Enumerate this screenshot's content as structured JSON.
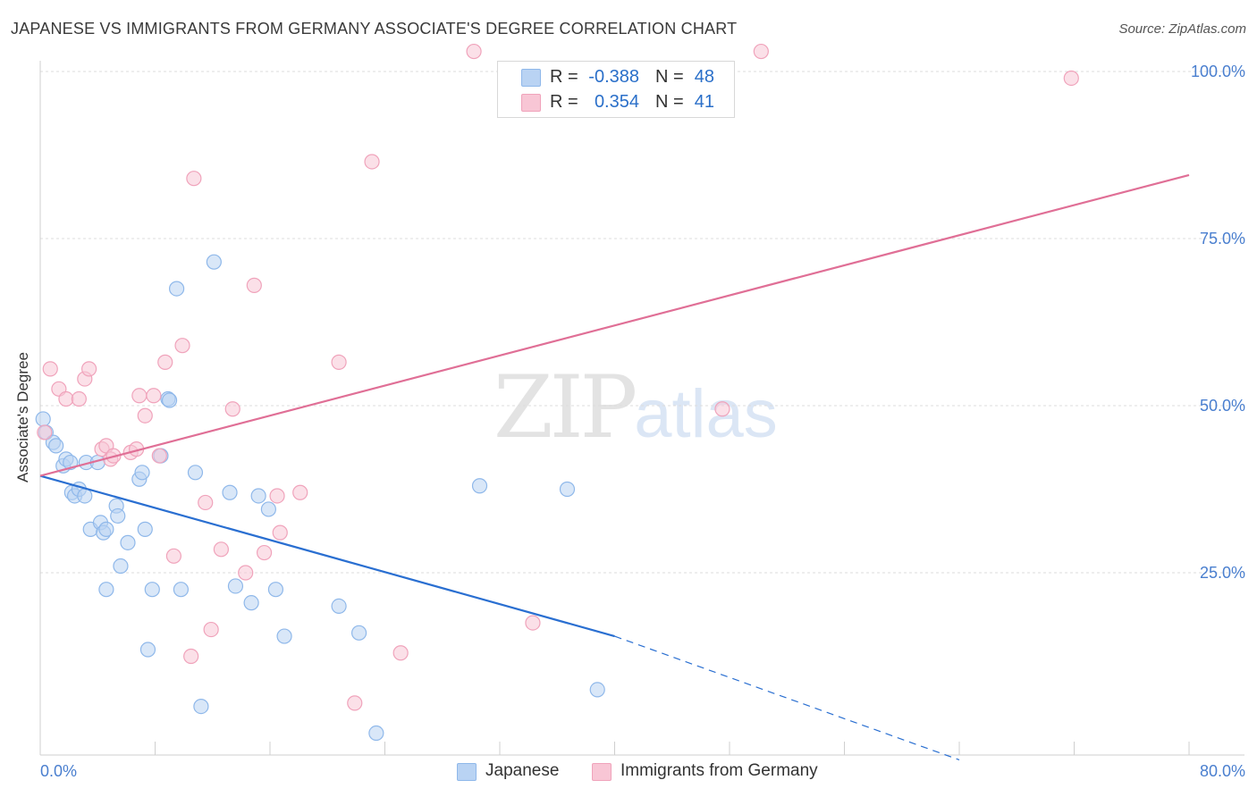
{
  "chart_data": {
    "type": "scatter",
    "title": "JAPANESE VS IMMIGRANTS FROM GERMANY ASSOCIATE'S DEGREE CORRELATION CHART",
    "source": "Source: ZipAtlas.com",
    "ylabel": "Associate's Degree",
    "xlabel": "",
    "xlim": [
      0,
      80
    ],
    "ylim": [
      0,
      100
    ],
    "x_tick_labels": {
      "left": "0.0%",
      "right": "80.0%"
    },
    "y_tick_labels": [
      "100.0%",
      "75.0%",
      "50.0%",
      "25.0%"
    ],
    "y_tick_values": [
      100,
      75,
      50,
      25
    ],
    "grid": true,
    "legend_stats": [
      {
        "r_label": "R =",
        "r_value": "-0.388",
        "n_label": "N =",
        "n_value": "48"
      },
      {
        "r_label": "R =",
        "r_value": "0.354",
        "n_label": "N =",
        "n_value": "41"
      }
    ],
    "series": [
      {
        "name": "Japanese",
        "color": "#8fb8ea",
        "fill": "#b9d3f3",
        "line_color": "#2a6fd1",
        "trend": {
          "x0": 0,
          "y0": 39.5,
          "x1": 40,
          "y1": 15.5,
          "dash_to_x": 80,
          "dash_to_y": -8.5
        },
        "points": [
          [
            0.2,
            48
          ],
          [
            0.4,
            46
          ],
          [
            0.9,
            44.5
          ],
          [
            1.1,
            44
          ],
          [
            1.6,
            41
          ],
          [
            1.8,
            42
          ],
          [
            2.1,
            41.5
          ],
          [
            2.2,
            37
          ],
          [
            2.4,
            36.5
          ],
          [
            2.7,
            37.5
          ],
          [
            3.1,
            36.5
          ],
          [
            3.2,
            41.5
          ],
          [
            4,
            41.5
          ],
          [
            3.5,
            31.5
          ],
          [
            4.2,
            32.5
          ],
          [
            4.4,
            31
          ],
          [
            4.6,
            31.5
          ],
          [
            5.3,
            35
          ],
          [
            5.4,
            33.5
          ],
          [
            5.6,
            26
          ],
          [
            6.1,
            29.5
          ],
          [
            6.9,
            39
          ],
          [
            7.1,
            40
          ],
          [
            7.3,
            31.5
          ],
          [
            7.5,
            13.5
          ],
          [
            7.8,
            22.5
          ],
          [
            8.4,
            42.5
          ],
          [
            8.9,
            51
          ],
          [
            9,
            50.8
          ],
          [
            9.5,
            67.5
          ],
          [
            9.8,
            22.5
          ],
          [
            10.8,
            40
          ],
          [
            11.2,
            5
          ],
          [
            12.1,
            71.5
          ],
          [
            13.2,
            37
          ],
          [
            13.6,
            23
          ],
          [
            14.7,
            20.5
          ],
          [
            15.2,
            36.5
          ],
          [
            15.9,
            34.5
          ],
          [
            16.4,
            22.5
          ],
          [
            17,
            15.5
          ],
          [
            20.8,
            20
          ],
          [
            22.2,
            16
          ],
          [
            23.4,
            1
          ],
          [
            30.6,
            38
          ],
          [
            36.7,
            37.5
          ],
          [
            38.8,
            7.5
          ],
          [
            4.6,
            22.5
          ]
        ]
      },
      {
        "name": "Immigrants from Germany",
        "color": "#f0a3bb",
        "fill": "#f8c6d5",
        "line_color": "#e06f96",
        "trend": {
          "x0": 0,
          "y0": 39.5,
          "x1": 80,
          "y1": 84.5
        },
        "points": [
          [
            0.3,
            46
          ],
          [
            0.7,
            55.5
          ],
          [
            1.3,
            52.5
          ],
          [
            1.8,
            51
          ],
          [
            2.7,
            51
          ],
          [
            3.1,
            54
          ],
          [
            3.4,
            55.5
          ],
          [
            4.3,
            43.5
          ],
          [
            4.6,
            44
          ],
          [
            4.9,
            42
          ],
          [
            5.1,
            42.5
          ],
          [
            6.3,
            43
          ],
          [
            6.7,
            43.5
          ],
          [
            6.9,
            51.5
          ],
          [
            7.3,
            48.5
          ],
          [
            7.9,
            51.5
          ],
          [
            8.3,
            42.5
          ],
          [
            8.7,
            56.5
          ],
          [
            9.3,
            27.5
          ],
          [
            9.9,
            59
          ],
          [
            10.5,
            12.5
          ],
          [
            10.7,
            84
          ],
          [
            11.5,
            35.5
          ],
          [
            11.9,
            16.5
          ],
          [
            12.6,
            28.5
          ],
          [
            13.4,
            49.5
          ],
          [
            14.3,
            25
          ],
          [
            14.9,
            68
          ],
          [
            15.6,
            28
          ],
          [
            16.5,
            36.5
          ],
          [
            16.7,
            31
          ],
          [
            18.1,
            37
          ],
          [
            20.8,
            56.5
          ],
          [
            21.9,
            5.5
          ],
          [
            23.1,
            86.5
          ],
          [
            25.1,
            13
          ],
          [
            30.2,
            103
          ],
          [
            34.3,
            17.5
          ],
          [
            47.5,
            49.5
          ],
          [
            50.2,
            103
          ],
          [
            71.8,
            99
          ]
        ]
      }
    ]
  },
  "watermark": {
    "part1": "ZIP",
    "part2": "atlas"
  }
}
